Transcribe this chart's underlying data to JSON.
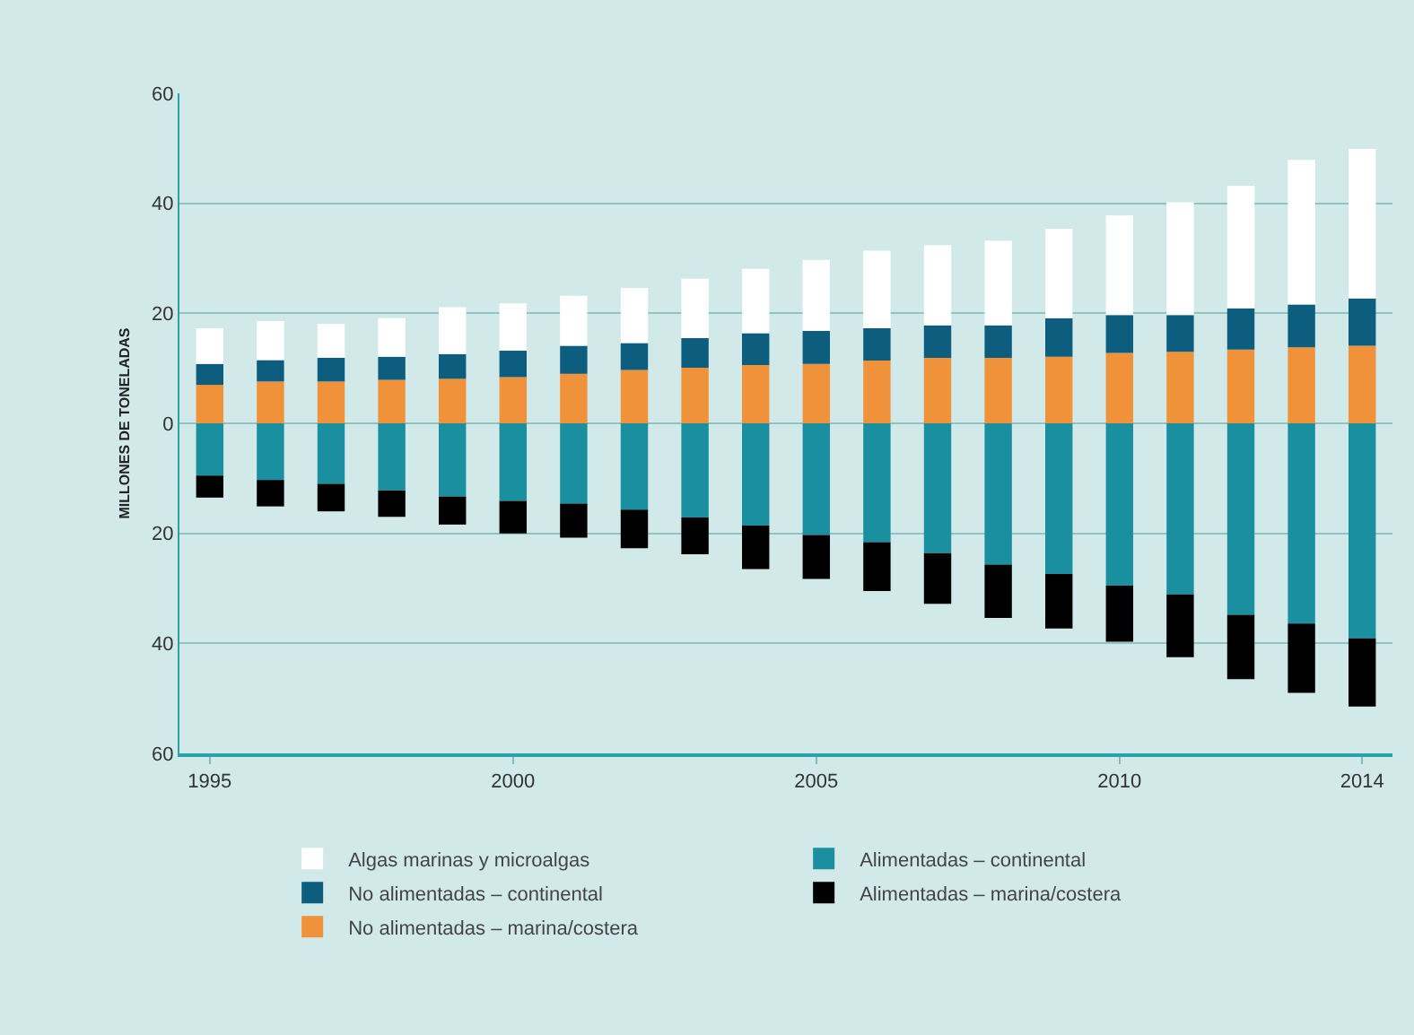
{
  "chart_data": {
    "type": "bar",
    "stacked": true,
    "ylabel": "MILLONES DE TONELADAS",
    "x": [
      1995,
      1996,
      1997,
      1998,
      1999,
      2000,
      2001,
      2002,
      2003,
      2004,
      2005,
      2006,
      2007,
      2008,
      2009,
      2010,
      2011,
      2012,
      2013,
      2014
    ],
    "xlim": [
      1994.5,
      2014.5
    ],
    "xticks": [
      1995,
      2000,
      2005,
      2010,
      2014
    ],
    "ylim": [
      -60,
      60
    ],
    "yticks": [
      {
        "value": -60,
        "label": "60"
      },
      {
        "value": -40,
        "label": "40"
      },
      {
        "value": -20,
        "label": "20"
      },
      0,
      20,
      40,
      60
    ],
    "grid": "y",
    "legend": "bottom",
    "series": [
      {
        "name": "No alimentadas – marina/costera",
        "color": "#f0923a",
        "values": [
          7.0,
          7.6,
          7.6,
          7.9,
          8.1,
          8.4,
          9.0,
          9.7,
          10.1,
          10.6,
          10.8,
          11.4,
          11.9,
          11.9,
          12.1,
          12.8,
          13.0,
          13.4,
          13.8,
          14.1
        ]
      },
      {
        "name": "No alimentadas – continental",
        "color": "#0d5e7e",
        "values": [
          3.8,
          3.9,
          4.3,
          4.2,
          4.5,
          4.8,
          5.1,
          4.9,
          5.4,
          5.8,
          6.0,
          5.9,
          5.9,
          5.9,
          7.0,
          6.9,
          6.7,
          7.5,
          7.8,
          8.6
        ]
      },
      {
        "name": "Algas marinas y microalgas",
        "color": "#ffffff",
        "values": [
          6.5,
          7.1,
          6.2,
          7.0,
          8.5,
          8.6,
          9.1,
          10.0,
          10.8,
          11.7,
          12.9,
          14.1,
          14.6,
          15.4,
          16.3,
          18.1,
          20.5,
          22.3,
          26.3,
          27.2
        ]
      },
      {
        "name": "Alimentadas – continental",
        "color": "#1a8fa0",
        "values": [
          -9.5,
          -10.3,
          -11.0,
          -12.2,
          -13.3,
          -14.1,
          -14.6,
          -15.7,
          -17.1,
          -18.6,
          -20.3,
          -21.6,
          -23.6,
          -25.7,
          -27.4,
          -29.5,
          -31.1,
          -34.8,
          -36.4,
          -39.1
        ]
      },
      {
        "name": "Alimentadas – marina/costera",
        "color": "#000000",
        "values": [
          -4.0,
          -4.8,
          -5.0,
          -4.8,
          -5.1,
          -5.9,
          -6.2,
          -7.0,
          -6.7,
          -7.9,
          -8.0,
          -8.9,
          -9.2,
          -9.7,
          -9.9,
          -10.2,
          -11.4,
          -11.7,
          -12.6,
          -12.4
        ]
      }
    ]
  }
}
